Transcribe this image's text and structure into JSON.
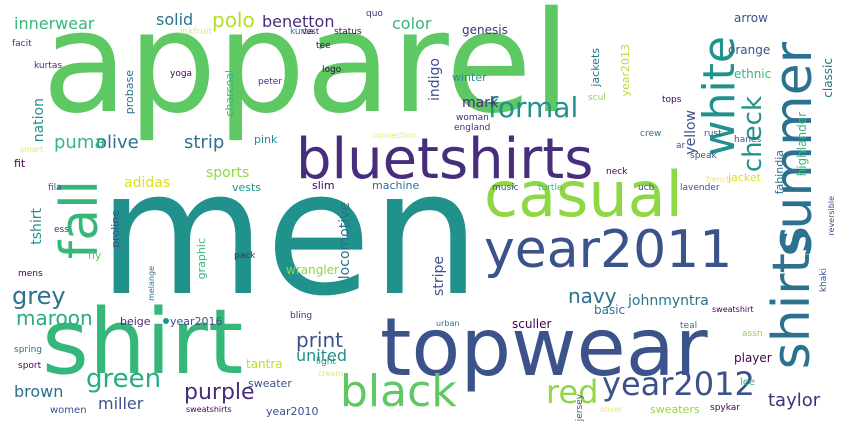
{
  "palette": {
    "light_green": "#5ec962",
    "green": "#35b779",
    "teal": "#21918c",
    "blue_teal": "#2c728e",
    "blue": "#3b528b",
    "indigo": "#472d7b",
    "dark_purple": "#440154",
    "lime": "#8fd744",
    "yellow_green": "#b5de2b",
    "yellow": "#dce319",
    "seafoam": "#27ad81",
    "pale_yellow": "#e8e66a"
  },
  "words": [
    {
      "text": "men",
      "color": "#21918c"
    },
    {
      "text": "apparel",
      "color": "#5ec962"
    },
    {
      "text": "topwear",
      "color": "#3b528b"
    },
    {
      "text": "shirt",
      "color": "#35b779"
    },
    {
      "text": "year2011",
      "color": "#3b528b"
    },
    {
      "text": "bluetshirts",
      "color": "#472d7b"
    },
    {
      "text": "casual",
      "color": "#8fd744"
    },
    {
      "text": "shirts",
      "color": "#2c728e"
    },
    {
      "text": "summer",
      "color": "#2c728e"
    },
    {
      "text": "fall",
      "color": "#35b779"
    },
    {
      "text": "black",
      "color": "#5ec962"
    },
    {
      "text": "white",
      "color": "#21918c"
    },
    {
      "text": "year2012",
      "color": "#3b528b"
    },
    {
      "text": "formal",
      "color": "#21918c"
    },
    {
      "text": "red",
      "color": "#8fd744"
    },
    {
      "text": "green",
      "color": "#27ad81"
    },
    {
      "text": "check",
      "color": "#21918c"
    },
    {
      "text": "grey",
      "color": "#2c728e"
    },
    {
      "text": "purple",
      "color": "#472d7b"
    },
    {
      "text": "navy",
      "color": "#2c728e"
    },
    {
      "text": "maroon",
      "color": "#27ad81"
    },
    {
      "text": "print",
      "color": "#3b528b"
    },
    {
      "text": "taylor",
      "color": "#472d7b"
    },
    {
      "text": "strip",
      "color": "#2c728e"
    },
    {
      "text": "olive",
      "color": "#2c728e"
    },
    {
      "text": "puma",
      "color": "#35b779"
    },
    {
      "text": "polo",
      "color": "#b5de2b"
    },
    {
      "text": "solid",
      "color": "#2c728e"
    },
    {
      "text": "innerwear",
      "color": "#35b779"
    },
    {
      "text": "benetton",
      "color": "#472d7b"
    },
    {
      "text": "color",
      "color": "#35b779"
    },
    {
      "text": "brown",
      "color": "#2c728e"
    },
    {
      "text": "united",
      "color": "#21918c"
    },
    {
      "text": "miller",
      "color": "#3b528b"
    },
    {
      "text": "johnmyntra",
      "color": "#2c728e"
    },
    {
      "text": "year2016",
      "color": "#3b528b"
    },
    {
      "text": "adidas",
      "color": "#dce319"
    },
    {
      "text": "sports",
      "color": "#8fd744"
    },
    {
      "text": "mark",
      "color": "#472d7b"
    },
    {
      "text": "indigo",
      "color": "#3b528b"
    },
    {
      "text": "yellow",
      "color": "#3b528b"
    },
    {
      "text": "locomotive",
      "color": "#2c728e"
    },
    {
      "text": "stripe",
      "color": "#3b528b"
    },
    {
      "text": "tshirt",
      "color": "#21918c"
    },
    {
      "text": "nation",
      "color": "#21918c"
    },
    {
      "text": "wrangler",
      "color": "#8fd744"
    },
    {
      "text": "sculler",
      "color": "#440154"
    },
    {
      "text": "player",
      "color": "#440154"
    },
    {
      "text": "tantra",
      "color": "#b5de2b"
    },
    {
      "text": "year2010",
      "color": "#3b528b"
    },
    {
      "text": "genesis",
      "color": "#472d7b"
    },
    {
      "text": "arrow",
      "color": "#3b528b"
    },
    {
      "text": "orange",
      "color": "#3b528b"
    },
    {
      "text": "highlander",
      "color": "#35b779"
    },
    {
      "text": "classic",
      "color": "#2c728e"
    },
    {
      "text": "ethnic",
      "color": "#35b779"
    },
    {
      "text": "jacket",
      "color": "#dce319"
    },
    {
      "text": "jackets",
      "color": "#2c728e"
    },
    {
      "text": "fabindia",
      "color": "#2c728e"
    },
    {
      "text": "pink",
      "color": "#21918c"
    },
    {
      "text": "vests",
      "color": "#21918c"
    },
    {
      "text": "slim",
      "color": "#440154"
    },
    {
      "text": "machine",
      "color": "#2c728e"
    },
    {
      "text": "charcoal",
      "color": "#35b779"
    },
    {
      "text": "probase",
      "color": "#2c728e"
    },
    {
      "text": "proline",
      "color": "#3b528b"
    },
    {
      "text": "graphic",
      "color": "#35b779"
    },
    {
      "text": "beige",
      "color": "#472d7b"
    },
    {
      "text": "basic",
      "color": "#2c728e"
    },
    {
      "text": "sweater",
      "color": "#3b528b"
    },
    {
      "text": "sweaters",
      "color": "#8fd744"
    },
    {
      "text": "women",
      "color": "#3b528b"
    },
    {
      "text": "lee",
      "color": "#35b779"
    },
    {
      "text": "winter",
      "color": "#21918c"
    },
    {
      "text": "woman",
      "color": "#472d7b"
    },
    {
      "text": "england",
      "color": "#472d7b"
    },
    {
      "text": "year2013",
      "color": "#b5de2b"
    },
    {
      "text": "ucb",
      "color": "#3b528b"
    },
    {
      "text": "lavender",
      "color": "#3b528b"
    },
    {
      "text": "music",
      "color": "#3b528b"
    },
    {
      "text": "turtle",
      "color": "#35b779"
    },
    {
      "text": "fila",
      "color": "#3b528b"
    },
    {
      "text": "fit",
      "color": "#440154"
    },
    {
      "text": "ess",
      "color": "#472d7b"
    },
    {
      "text": "fly",
      "color": "#5ec962"
    },
    {
      "text": "mens",
      "color": "#440154"
    },
    {
      "text": "pack",
      "color": "#472d7b"
    },
    {
      "text": "peter",
      "color": "#472d7b"
    },
    {
      "text": "logo",
      "color": "#440154"
    },
    {
      "text": "yoga",
      "color": "#440154"
    },
    {
      "text": "facit",
      "color": "#472d7b"
    },
    {
      "text": "kurtas",
      "color": "#472d7b"
    },
    {
      "text": "inkfruit",
      "color": "#e8e66a"
    },
    {
      "text": "kurta",
      "color": "#2c728e"
    },
    {
      "text": "status",
      "color": "#440154"
    },
    {
      "text": "tee",
      "color": "#440154"
    },
    {
      "text": "vest",
      "color": "#440154"
    },
    {
      "text": "quo",
      "color": "#472d7b"
    },
    {
      "text": "scul",
      "color": "#8fd744"
    },
    {
      "text": "tops",
      "color": "#440154"
    },
    {
      "text": "rust",
      "color": "#3b528b"
    },
    {
      "text": "hanes",
      "color": "#3b528b"
    },
    {
      "text": "crew",
      "color": "#2c728e"
    },
    {
      "text": "connection",
      "color": "#e8e66a"
    },
    {
      "text": "speak",
      "color": "#3b528b"
    },
    {
      "text": "neck",
      "color": "#440154"
    },
    {
      "text": "french",
      "color": "#e8e66a"
    },
    {
      "text": "smart",
      "color": "#e8e66a"
    },
    {
      "text": "ar",
      "color": "#3b528b"
    },
    {
      "text": "assn",
      "color": "#8fd744"
    },
    {
      "text": "teal",
      "color": "#2c728e"
    },
    {
      "text": "sweatshirt",
      "color": "#440154"
    },
    {
      "text": "urban",
      "color": "#2c728e"
    },
    {
      "text": "bling",
      "color": "#472d7b"
    },
    {
      "text": "melange",
      "color": "#2c728e"
    },
    {
      "text": "light",
      "color": "#21918c"
    },
    {
      "text": "cream",
      "color": "#e8e66a"
    },
    {
      "text": "jersey",
      "color": "#3b528b"
    },
    {
      "text": "spring",
      "color": "#2c728e"
    },
    {
      "text": "sport",
      "color": "#440154"
    },
    {
      "text": "sweatshirts",
      "color": "#440154"
    },
    {
      "text": "oliver",
      "color": "#e8e66a"
    },
    {
      "text": "spykar",
      "color": "#440154"
    },
    {
      "text": "khaki",
      "color": "#3b528b"
    },
    {
      "text": "reversible",
      "color": "#3b528b"
    }
  ]
}
